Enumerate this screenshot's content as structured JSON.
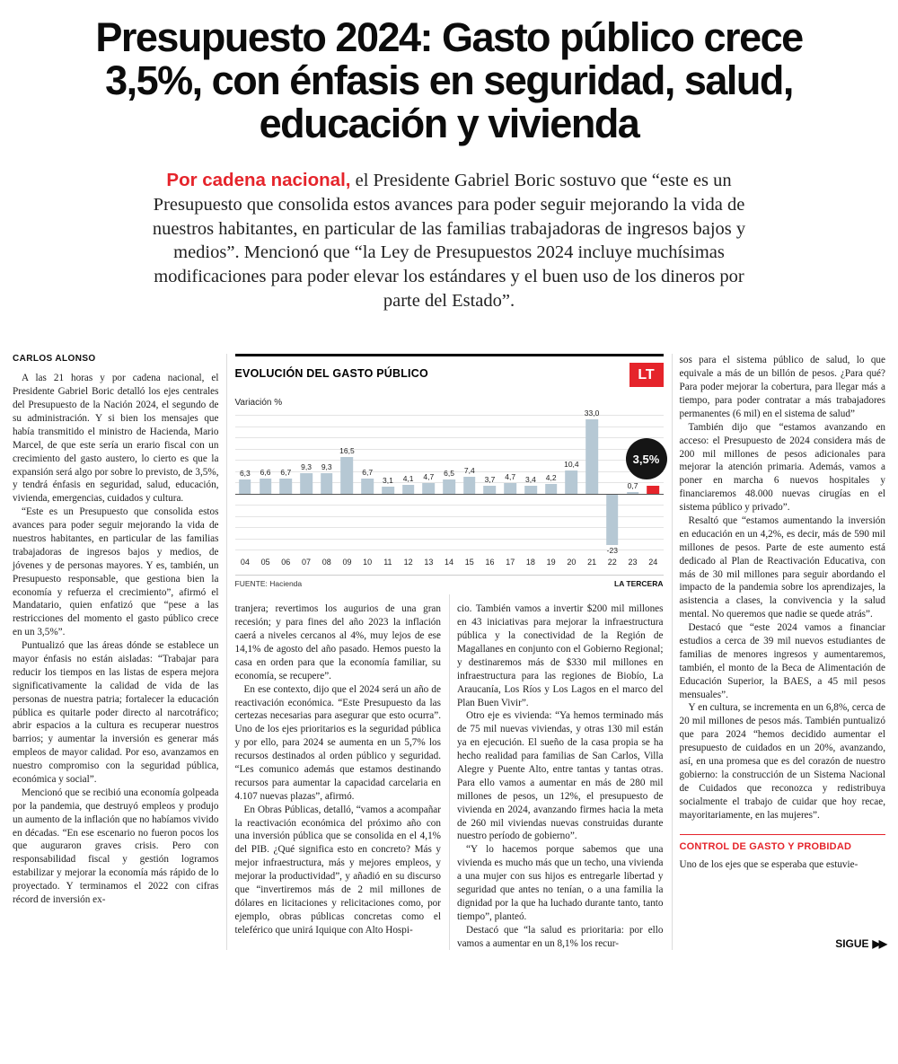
{
  "headline_lines": [
    "Presupuesto 2024: Gasto público crece",
    "3,5%, con énfasis en seguridad, salud,",
    "educación y vivienda"
  ],
  "lede": {
    "kicker": "Por cadena nacional,",
    "text": " el Presidente Gabriel Boric sostuvo que “este es un Presupuesto que consolida estos avances para poder seguir mejorando la vida de nuestros habitantes, en particular de las familias trabajadoras de ingresos bajos y medios”. Mencionó que “la Ley de Presupuestos 2024 incluye muchísimas modificaciones para poder elevar los estándares y el buen uso de los dineros por parte del Estado”."
  },
  "article": {
    "byline": "CARLOS ALONSO",
    "col1": [
      "A las 21 horas y por cadena nacional, el Presidente Gabriel Boric detalló los ejes centrales del Presupuesto de la Nación 2024, el segundo de su administración. Y si bien los mensajes que había transmitido el ministro de Hacienda, Mario Marcel, de que este sería un erario fiscal con un crecimiento del gasto austero, lo cierto es que la expansión será algo por sobre lo previsto, de 3,5%, y tendrá énfasis en seguridad, salud, educación, vivienda, emergencias, cuidados y cultura.",
      "“Este es un Presupuesto que consolida estos avances para poder seguir mejorando la vida de nuestros habitantes, en particular de las familias trabajadoras de ingresos bajos y medios, de jóvenes y de personas mayores. Y es, también, un Presupuesto responsable, que gestiona bien la economía y refuerza el crecimiento”, afirmó el Mandatario, quien enfatizó que “pese a las restricciones del momento el gasto público crece en un 3,5%”.",
      "Puntualizó que las áreas dónde se establece un mayor énfasis no están aisladas: “Trabajar para reducir los tiempos en las listas de espera mejora significativamente la calidad de vida de las personas de nuestra patria; fortalecer la educación pública es quitarle poder directo al narcotráfico; abrir espacios a la cultura es recuperar nuestros barrios; y aumentar la inversión es generar más empleos de mayor calidad. Por eso, avanzamos en nuestro compromiso con la seguridad pública, económica y social”.",
      "Mencionó que se recibió una economía golpeada por la pandemia, que destruyó empleos y produjo un aumento de la inflación que no habíamos vivido en décadas. “En ese escenario no fueron pocos los que auguraron graves crisis. Pero con responsabilidad fiscal y gestión logramos estabilizar y mejorar la economía más rápido de lo proyectado. Y terminamos el 2022 con cifras récord de inversión ex-"
    ],
    "col2": [
      "tranjera; revertimos los augurios de una gran recesión; y para fines del año 2023 la inflación caerá a niveles cercanos al 4%, muy lejos de ese 14,1% de agosto del año pasado. Hemos puesto la casa en orden para que la economía familiar, su economía, se recupere”.",
      "En ese contexto, dijo que el 2024 será un año de reactivación económica. “Este Presupuesto da las certezas necesarias para asegurar que esto ocurra”. Uno de los ejes prioritarios es la seguridad pública y por ello, para 2024 se aumenta en un 5,7% los recursos destinados al orden público y seguridad. “Les comunico además que estamos destinando recursos para aumentar la capacidad carcelaria en 4.107 nuevas plazas”, afirmó.",
      "En Obras Públicas, detalló, “vamos a acompañar la reactivación económica del próximo año con una inversión pública que se consolida en el 4,1% del PIB. ¿Qué significa esto en concreto? Más y mejor infraestructura, más y mejores empleos, y mejorar la productividad”, y añadió en su discurso que “invertiremos más de 2 mil millones de dólares en licitaciones y relicitaciones como, por ejemplo, obras públicas concretas como el teleférico que unirá Iquique con Alto Hospi-"
    ],
    "col3": [
      "cio. También vamos a invertir $200 mil millones en 43 iniciativas para mejorar la infraestructura pública y la conectividad de la Región de Magallanes en conjunto con el Gobierno Regional; y destinaremos más de $330 mil millones en infraestructura para las regiones de Biobío, La Araucanía, Los Ríos y Los Lagos en el marco del Plan Buen Vivir”.",
      "Otro eje es vivienda: “Ya hemos terminado más de 75 mil nuevas viviendas, y otras 130 mil están ya en ejecución. El sueño de la casa propia se ha hecho realidad para familias de San Carlos, Villa Alegre y Puente Alto, entre tantas y tantas otras. Para ello vamos a aumentar en más de 280 mil millones de pesos, un 12%, el presupuesto de vivienda en 2024, avanzando firmes hacia la meta de 260 mil viviendas nuevas construidas durante nuestro período de gobierno”.",
      "“Y lo hacemos porque sabemos que una vivienda es mucho más que un techo, una vivienda a una mujer con sus hijos es entregarle libertad y seguridad que antes no tenían, o a una familia la dignidad por la que ha luchado durante tanto, tanto tiempo”, planteó.",
      "Destacó que “la salud es prioritaria: por ello vamos a aumentar en un 8,1% los recur-"
    ],
    "col4": [
      "sos para el sistema público de salud, lo que equivale a más de un billón de pesos. ¿Para qué? Para poder mejorar la cobertura, para llegar más a tiempo, para poder contratar a más trabajadores permanentes (6 mil) en el sistema de salud”",
      "También dijo que “estamos avanzando en acceso: el Presupuesto de 2024 considera más de 200 mil millones de pesos adicionales para mejorar la atención primaria. Además, vamos a poner en marcha 6 nuevos hospitales y financiaremos 48.000 nuevas cirugías en el sistema público y privado”.",
      "Resaltó que “estamos aumentando la inversión en educación en un 4,2%, es decir, más de 590 mil millones de pesos. Parte de este aumento está dedicado al Plan de Reactivación Educativa, con más de 30 mil millones para seguir abordando el impacto de la pandemia sobre los aprendizajes, la asistencia a clases, la convivencia y la salud mental. No queremos que nadie se quede atrás”.",
      "Destacó que “este 2024 vamos a financiar estudios a cerca de 39 mil nuevos estudiantes de familias de menores ingresos y aumentaremos, también, el monto de la Beca de Alimentación de Educación Superior, la BAES, a 45 mil pesos mensuales”.",
      "Y en cultura, se incrementa en un 6,8%, cerca de 20 mil millones de pesos más. También puntualizó que para 2024 “hemos decidido aumentar el presupuesto de cuidados en un 20%, avanzando, así, en una promesa que es del corazón de nuestro gobierno: la construcción de un Sistema Nacional de Cuidados que reconozca y redistribuya socialmente el trabajo de cuidar que hoy recae, mayoritariamente, en las mujeres”."
    ],
    "section_header": "CONTROL DE GASTO Y PROBIDAD",
    "col4_after": [
      "Uno de los ejes que se esperaba que estuvie-"
    ],
    "continue_label": "SIGUE",
    "continue_arrows": "▶▶"
  },
  "chart_data": {
    "type": "bar",
    "title": "EVOLUCIÓN DEL GASTO PÚBLICO",
    "ylabel": "Variación %",
    "logo": "LT",
    "categories": [
      "04",
      "05",
      "06",
      "07",
      "08",
      "09",
      "10",
      "11",
      "12",
      "13",
      "14",
      "15",
      "16",
      "17",
      "18",
      "19",
      "20",
      "21",
      "22",
      "23",
      "24"
    ],
    "values": [
      6.3,
      6.6,
      6.7,
      9.3,
      9.3,
      16.5,
      6.7,
      3.1,
      4.1,
      4.7,
      6.5,
      7.4,
      3.7,
      4.7,
      3.4,
      4.2,
      10.4,
      33.0,
      -23,
      0.7,
      3.5
    ],
    "labels": [
      "6,3",
      "6,6",
      "6,7",
      "9,3",
      "9,3",
      "16,5",
      "6,7",
      "3,1",
      "4,1",
      "4,7",
      "6,5",
      "7,4",
      "3,7",
      "4,7",
      "3,4",
      "4,2",
      "10,4",
      "33,0",
      "-23",
      "0,7",
      ""
    ],
    "highlight_index": 20,
    "badge": "3,5%",
    "ylim": [
      -25,
      35
    ],
    "grid_step": 5,
    "bar_color": "#b6c8d4",
    "highlight_color": "#e5242b",
    "source": "FUENTE: Hacienda",
    "credit": "LA TERCERA",
    "grid": true,
    "legend": false
  },
  "colors": {
    "accent_red": "#e5242b",
    "bar_blue": "#b6c8d4",
    "badge_black": "#151515"
  }
}
